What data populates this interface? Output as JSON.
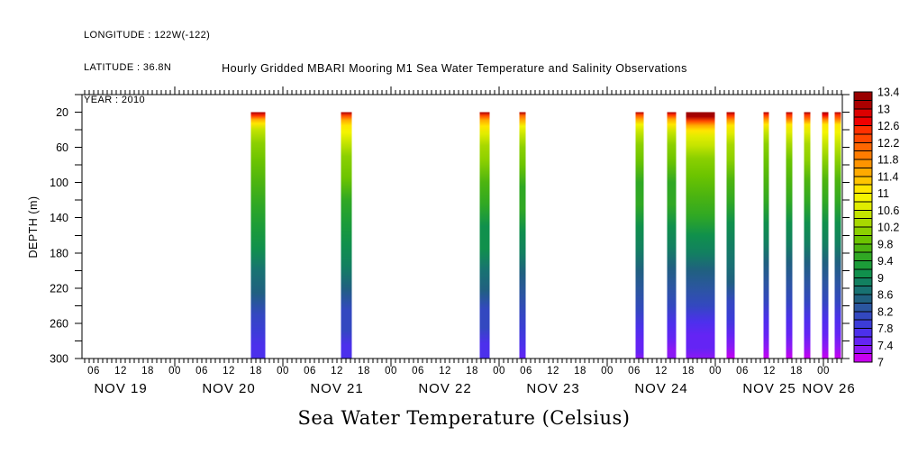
{
  "header": {
    "longitude": "LONGITUDE : 122W(-122)",
    "latitude": "LATITUDE : 36.8N",
    "year": "YEAR : 2010"
  },
  "title": "Hourly Gridded MBARI Mooring M1 Sea Water Temperature and Salinity Observations",
  "footer_title": "Sea Water Temperature (Celsius)",
  "chart_data": {
    "type": "heatmap",
    "title": "Hourly Gridded MBARI Mooring M1 Sea Water Temperature and Salinity Observations",
    "variable": "Sea Water Temperature (Celsius)",
    "grid": false,
    "x_axis": {
      "range_hours": [
        3.4,
        172.2
      ],
      "hour_tick_step": 1,
      "major_tick_every_hours": 24,
      "hour_label_step": 6,
      "hour_label_cycle": [
        "06",
        "12",
        "18",
        "00"
      ],
      "day_labels": [
        {
          "label": "NOV 19",
          "noon_hour": 12
        },
        {
          "label": "NOV 20",
          "noon_hour": 36
        },
        {
          "label": "NOV 21",
          "noon_hour": 60
        },
        {
          "label": "NOV 22",
          "noon_hour": 84
        },
        {
          "label": "NOV 23",
          "noon_hour": 108
        },
        {
          "label": "NOV 24",
          "noon_hour": 132
        },
        {
          "label": "NOV 25",
          "noon_hour": 156
        },
        {
          "label": "NOV 26",
          "noon_hour": 180
        }
      ]
    },
    "y_axis": {
      "label": "DEPTH (m)",
      "min": 0,
      "max": 300,
      "tick_step": 20,
      "labeled_ticks": [
        20,
        60,
        100,
        140,
        180,
        220,
        260,
        300
      ]
    },
    "colorbar": {
      "min": 7,
      "max": 13.4,
      "cell_step": 0.2,
      "label_step": 0.4,
      "labels_top_to_bottom": [
        "13.4",
        "13",
        "12.6",
        "12.2",
        "11.8",
        "11.4",
        "11",
        "10.6",
        "10.2",
        "9.8",
        "9.4",
        "9",
        "8.6",
        "8.2",
        "7.8",
        "7.4",
        "7"
      ],
      "colors_low_to_high": [
        "#c800f0",
        "#8c18f4",
        "#6424f4",
        "#4c30ec",
        "#3c3cd8",
        "#3348c0",
        "#2b56a0",
        "#206080",
        "#187272",
        "#128060",
        "#10904c",
        "#1c9c38",
        "#30a824",
        "#4cb410",
        "#6cc400",
        "#8cd000",
        "#a8d800",
        "#c4e400",
        "#e0ec00",
        "#f4f400",
        "#ffe600",
        "#ffc400",
        "#ffaa00",
        "#ff9400",
        "#ff7c00",
        "#ff6600",
        "#ff4800",
        "#ff3000",
        "#f00000",
        "#dd0000",
        "#aa0000",
        "#990000"
      ]
    },
    "bars": [
      {
        "date": "NOV 20",
        "start_hour": 40.9,
        "end_hour": 44.1,
        "profile": [
          [
            20,
            13.2
          ],
          [
            24,
            12.4
          ],
          [
            28,
            11.6
          ],
          [
            33,
            11.0
          ],
          [
            40,
            10.6
          ],
          [
            55,
            10.2
          ],
          [
            75,
            9.9
          ],
          [
            100,
            9.7
          ],
          [
            125,
            9.5
          ],
          [
            150,
            9.3
          ],
          [
            175,
            9.0
          ],
          [
            200,
            8.7
          ],
          [
            225,
            8.4
          ],
          [
            250,
            8.1
          ],
          [
            270,
            7.9
          ],
          [
            285,
            7.8
          ],
          [
            300,
            7.8
          ]
        ]
      },
      {
        "date": "NOV 21",
        "start_hour": 60.9,
        "end_hour": 63.3,
        "profile": [
          [
            20,
            13.0
          ],
          [
            24,
            12.3
          ],
          [
            29,
            11.6
          ],
          [
            35,
            11.1
          ],
          [
            43,
            10.8
          ],
          [
            55,
            10.5
          ],
          [
            70,
            10.1
          ],
          [
            95,
            9.8
          ],
          [
            120,
            9.6
          ],
          [
            145,
            9.3
          ],
          [
            170,
            9.0
          ],
          [
            195,
            8.8
          ],
          [
            220,
            8.5
          ],
          [
            245,
            8.2
          ],
          [
            268,
            8.0
          ],
          [
            285,
            7.8
          ],
          [
            300,
            7.7
          ]
        ]
      },
      {
        "date": "NOV 22",
        "start_hour": 91.7,
        "end_hour": 93.9,
        "profile": [
          [
            20,
            13.1
          ],
          [
            24,
            12.3
          ],
          [
            29,
            11.5
          ],
          [
            36,
            11.0
          ],
          [
            45,
            10.7
          ],
          [
            58,
            10.3
          ],
          [
            75,
            10.0
          ],
          [
            100,
            9.7
          ],
          [
            125,
            9.5
          ],
          [
            150,
            9.2
          ],
          [
            175,
            9.0
          ],
          [
            200,
            8.7
          ],
          [
            222,
            8.4
          ],
          [
            244,
            8.2
          ],
          [
            265,
            8.0
          ],
          [
            283,
            7.8
          ],
          [
            300,
            7.7
          ]
        ]
      },
      {
        "date": "NOV 23",
        "start_hour": 100.5,
        "end_hour": 101.9,
        "profile": [
          [
            20,
            13.0
          ],
          [
            24,
            12.2
          ],
          [
            29,
            11.4
          ],
          [
            36,
            10.9
          ],
          [
            46,
            10.5
          ],
          [
            60,
            10.1
          ],
          [
            80,
            9.8
          ],
          [
            105,
            9.6
          ],
          [
            130,
            9.4
          ],
          [
            155,
            9.1
          ],
          [
            180,
            8.9
          ],
          [
            203,
            8.6
          ],
          [
            226,
            8.3
          ],
          [
            248,
            8.1
          ],
          [
            268,
            7.9
          ],
          [
            285,
            7.7
          ],
          [
            300,
            7.6
          ]
        ]
      },
      {
        "date": "NOV 24",
        "start_hour": 126.3,
        "end_hour": 128.1,
        "profile": [
          [
            20,
            13.1
          ],
          [
            23,
            12.3
          ],
          [
            28,
            11.5
          ],
          [
            34,
            10.9
          ],
          [
            43,
            10.5
          ],
          [
            57,
            10.1
          ],
          [
            75,
            9.8
          ],
          [
            100,
            9.6
          ],
          [
            125,
            9.4
          ],
          [
            150,
            9.1
          ],
          [
            175,
            8.9
          ],
          [
            200,
            8.6
          ],
          [
            223,
            8.3
          ],
          [
            245,
            8.0
          ],
          [
            265,
            7.8
          ],
          [
            282,
            7.6
          ],
          [
            293,
            7.4
          ],
          [
            300,
            7.3
          ]
        ]
      },
      {
        "date": "NOV 24",
        "start_hour": 133.3,
        "end_hour": 135.3,
        "profile": [
          [
            20,
            13.2
          ],
          [
            23,
            12.5
          ],
          [
            28,
            11.6
          ],
          [
            34,
            11.0
          ],
          [
            43,
            10.6
          ],
          [
            57,
            10.2
          ],
          [
            75,
            9.9
          ],
          [
            100,
            9.6
          ],
          [
            125,
            9.4
          ],
          [
            150,
            9.1
          ],
          [
            173,
            8.9
          ],
          [
            196,
            8.6
          ],
          [
            218,
            8.3
          ],
          [
            240,
            8.0
          ],
          [
            260,
            7.8
          ],
          [
            277,
            7.5
          ],
          [
            290,
            7.3
          ],
          [
            300,
            7.2
          ]
        ]
      },
      {
        "date": "NOV 24",
        "start_hour": 137.5,
        "end_hour": 143.9,
        "profile": [
          [
            20,
            13.3
          ],
          [
            25,
            13.0
          ],
          [
            30,
            12.3
          ],
          [
            35,
            11.6
          ],
          [
            41,
            11.1
          ],
          [
            48,
            10.7
          ],
          [
            58,
            10.4
          ],
          [
            72,
            10.1
          ],
          [
            92,
            9.9
          ],
          [
            115,
            9.7
          ],
          [
            138,
            9.4
          ],
          [
            160,
            9.2
          ],
          [
            180,
            8.9
          ],
          [
            200,
            8.6
          ],
          [
            220,
            8.3
          ],
          [
            240,
            8.0
          ],
          [
            258,
            7.8
          ],
          [
            274,
            7.6
          ],
          [
            288,
            7.4
          ],
          [
            300,
            7.3
          ]
        ]
      },
      {
        "date": "NOV 25",
        "start_hour": 146.5,
        "end_hour": 148.3,
        "profile": [
          [
            20,
            13.2
          ],
          [
            24,
            12.5
          ],
          [
            29,
            11.7
          ],
          [
            35,
            11.1
          ],
          [
            44,
            10.7
          ],
          [
            57,
            10.3
          ],
          [
            74,
            10.0
          ],
          [
            98,
            9.7
          ],
          [
            122,
            9.5
          ],
          [
            146,
            9.2
          ],
          [
            169,
            8.9
          ],
          [
            191,
            8.7
          ],
          [
            213,
            8.4
          ],
          [
            235,
            8.1
          ],
          [
            255,
            7.9
          ],
          [
            273,
            7.6
          ],
          [
            288,
            7.3
          ],
          [
            300,
            7.1
          ]
        ]
      },
      {
        "date": "NOV 25",
        "start_hour": 154.7,
        "end_hour": 155.9,
        "profile": [
          [
            20,
            13.2
          ],
          [
            23,
            12.4
          ],
          [
            28,
            11.7
          ],
          [
            34,
            11.1
          ],
          [
            43,
            10.6
          ],
          [
            56,
            10.2
          ],
          [
            74,
            9.9
          ],
          [
            98,
            9.7
          ],
          [
            122,
            9.4
          ],
          [
            146,
            9.2
          ],
          [
            169,
            8.9
          ],
          [
            191,
            8.6
          ],
          [
            213,
            8.3
          ],
          [
            235,
            8.0
          ],
          [
            255,
            7.8
          ],
          [
            272,
            7.5
          ],
          [
            287,
            7.3
          ],
          [
            300,
            7.1
          ]
        ]
      },
      {
        "date": "NOV 25",
        "start_hour": 159.7,
        "end_hour": 161.1,
        "profile": [
          [
            20,
            13.2
          ],
          [
            23,
            12.5
          ],
          [
            28,
            11.8
          ],
          [
            34,
            11.1
          ],
          [
            43,
            10.7
          ],
          [
            56,
            10.3
          ],
          [
            74,
            9.9
          ],
          [
            98,
            9.7
          ],
          [
            122,
            9.4
          ],
          [
            146,
            9.1
          ],
          [
            169,
            8.9
          ],
          [
            191,
            8.6
          ],
          [
            213,
            8.3
          ],
          [
            235,
            8.0
          ],
          [
            255,
            7.7
          ],
          [
            272,
            7.5
          ],
          [
            287,
            7.2
          ],
          [
            300,
            7.1
          ]
        ]
      },
      {
        "date": "NOV 25",
        "start_hour": 163.7,
        "end_hour": 165.1,
        "profile": [
          [
            20,
            13.3
          ],
          [
            23,
            12.6
          ],
          [
            28,
            11.8
          ],
          [
            34,
            11.2
          ],
          [
            43,
            10.7
          ],
          [
            56,
            10.3
          ],
          [
            74,
            10.0
          ],
          [
            98,
            9.7
          ],
          [
            122,
            9.4
          ],
          [
            146,
            9.2
          ],
          [
            169,
            8.9
          ],
          [
            191,
            8.6
          ],
          [
            213,
            8.3
          ],
          [
            235,
            8.0
          ],
          [
            255,
            7.7
          ],
          [
            272,
            7.4
          ],
          [
            287,
            7.2
          ],
          [
            300,
            7.0
          ]
        ]
      },
      {
        "date": "NOV 25",
        "start_hour": 167.7,
        "end_hour": 169.1,
        "profile": [
          [
            20,
            13.3
          ],
          [
            23,
            12.7
          ],
          [
            28,
            11.9
          ],
          [
            34,
            11.2
          ],
          [
            43,
            10.8
          ],
          [
            56,
            10.4
          ],
          [
            74,
            10.0
          ],
          [
            98,
            9.7
          ],
          [
            122,
            9.5
          ],
          [
            146,
            9.2
          ],
          [
            169,
            8.9
          ],
          [
            191,
            8.6
          ],
          [
            213,
            8.3
          ],
          [
            235,
            8.0
          ],
          [
            255,
            7.7
          ],
          [
            272,
            7.4
          ],
          [
            287,
            7.2
          ],
          [
            300,
            7.0
          ]
        ]
      },
      {
        "date": "NOV 26",
        "start_hour": 170.5,
        "end_hour": 171.9,
        "profile": [
          [
            20,
            13.2
          ],
          [
            23,
            12.6
          ],
          [
            28,
            11.9
          ],
          [
            34,
            11.2
          ],
          [
            43,
            10.8
          ],
          [
            56,
            10.4
          ],
          [
            74,
            10.0
          ],
          [
            98,
            9.7
          ],
          [
            122,
            9.5
          ],
          [
            146,
            9.2
          ],
          [
            169,
            8.9
          ],
          [
            191,
            8.6
          ],
          [
            213,
            8.3
          ],
          [
            235,
            8.0
          ],
          [
            255,
            7.7
          ],
          [
            272,
            7.5
          ],
          [
            287,
            7.2
          ],
          [
            300,
            7.1
          ]
        ]
      }
    ]
  }
}
